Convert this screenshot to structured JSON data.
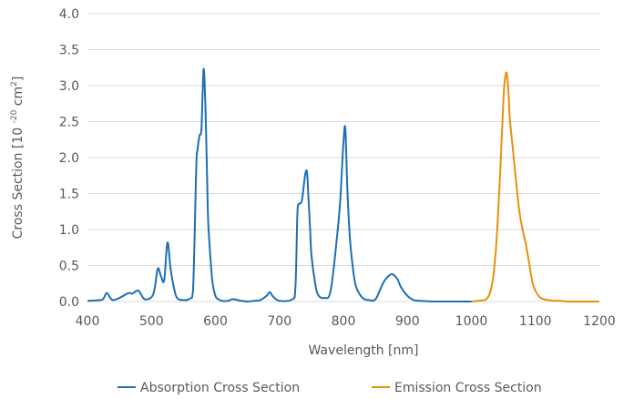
{
  "chart_data": {
    "type": "line",
    "title": "",
    "xlabel": "Wavelength [nm]",
    "ylabel": "Cross Section [10 ",
    "ylabel_sup": "-20",
    "ylabel_mid": " cm",
    "ylabel_sup2": "2",
    "ylabel_end": "]",
    "xlim": [
      400,
      1200
    ],
    "ylim": [
      0,
      4.0
    ],
    "xticks": [
      "400",
      "500",
      "600",
      "700",
      "800",
      "900",
      "1000",
      "1100",
      "1200"
    ],
    "yticks": [
      "0.0",
      "0.5",
      "1.0",
      "1.5",
      "2.0",
      "2.5",
      "3.0",
      "3.5",
      "4.0"
    ],
    "grid": "horizontal",
    "legend": "bottom",
    "series": [
      {
        "name": "Absorption Cross Section",
        "color": "#1f6fb2",
        "x": [
          400,
          420,
          425,
          430,
          435,
          440,
          450,
          460,
          465,
          470,
          475,
          480,
          485,
          490,
          500,
          505,
          510,
          515,
          520,
          525,
          530,
          535,
          540,
          550,
          560,
          565,
          570,
          572,
          575,
          578,
          580,
          582,
          585,
          588,
          590,
          595,
          600,
          605,
          610,
          620,
          625,
          630,
          640,
          650,
          660,
          670,
          680,
          685,
          690,
          700,
          720,
          725,
          728,
          730,
          735,
          740,
          743,
          745,
          748,
          750,
          755,
          760,
          770,
          780,
          790,
          795,
          800,
          803,
          806,
          810,
          815,
          820,
          830,
          840,
          850,
          860,
          865,
          870,
          875,
          880,
          885,
          890,
          900,
          910,
          920,
          940,
          960,
          980,
          1000
        ],
        "y": [
          0.01,
          0.02,
          0.04,
          0.12,
          0.06,
          0.02,
          0.05,
          0.1,
          0.12,
          0.11,
          0.14,
          0.15,
          0.08,
          0.03,
          0.06,
          0.18,
          0.46,
          0.35,
          0.3,
          0.82,
          0.45,
          0.2,
          0.05,
          0.02,
          0.04,
          0.15,
          1.85,
          2.1,
          2.3,
          2.38,
          2.9,
          3.22,
          2.5,
          1.3,
          0.9,
          0.3,
          0.08,
          0.03,
          0.01,
          0.01,
          0.03,
          0.03,
          0.01,
          0.0,
          0.01,
          0.02,
          0.08,
          0.13,
          0.07,
          0.01,
          0.03,
          0.2,
          1.2,
          1.35,
          1.4,
          1.75,
          1.8,
          1.5,
          1.0,
          0.65,
          0.3,
          0.1,
          0.05,
          0.15,
          0.9,
          1.4,
          2.2,
          2.4,
          1.6,
          0.9,
          0.45,
          0.2,
          0.05,
          0.02,
          0.03,
          0.22,
          0.3,
          0.35,
          0.38,
          0.36,
          0.3,
          0.2,
          0.08,
          0.02,
          0.01,
          0.0,
          0.0,
          0.0,
          0.0
        ]
      },
      {
        "name": "Emission Cross Section",
        "color": "#e8900c",
        "x": [
          1000,
          1010,
          1020,
          1025,
          1030,
          1035,
          1040,
          1045,
          1050,
          1052,
          1055,
          1058,
          1060,
          1065,
          1070,
          1075,
          1080,
          1085,
          1090,
          1095,
          1100,
          1105,
          1110,
          1120,
          1130,
          1140,
          1150,
          1160,
          1170,
          1180,
          1190,
          1200
        ],
        "y": [
          0.0,
          0.01,
          0.02,
          0.05,
          0.15,
          0.4,
          0.95,
          1.8,
          2.8,
          3.05,
          3.18,
          2.9,
          2.55,
          2.1,
          1.65,
          1.25,
          1.0,
          0.8,
          0.55,
          0.28,
          0.15,
          0.08,
          0.04,
          0.02,
          0.01,
          0.01,
          0.0,
          0.0,
          0.0,
          0.0,
          0.0,
          0.0
        ]
      }
    ]
  }
}
